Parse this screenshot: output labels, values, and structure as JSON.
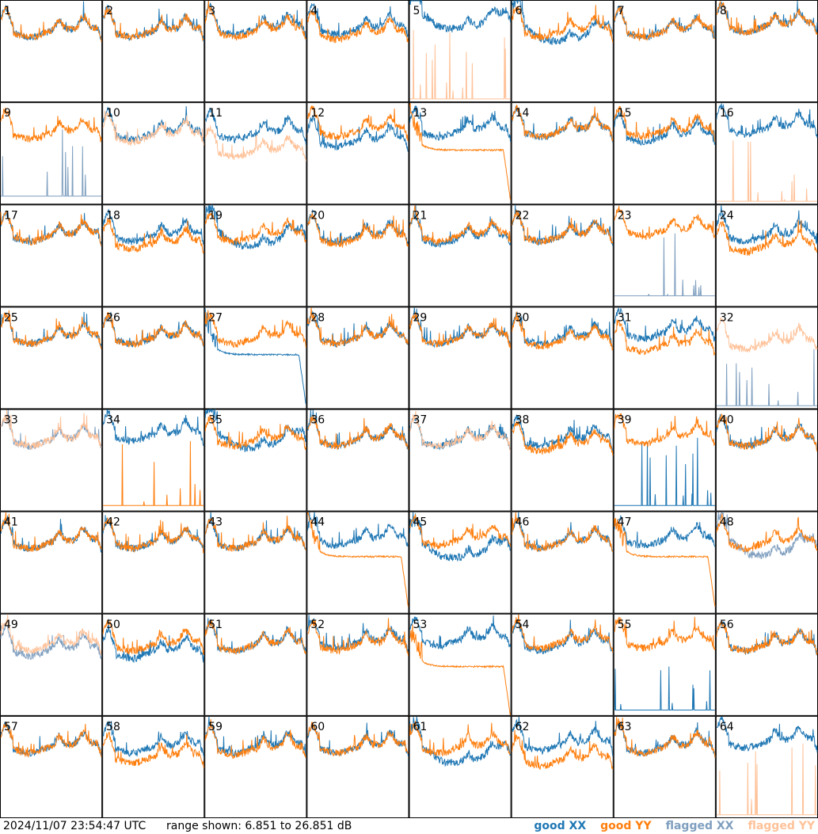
{
  "chart_data": {
    "type": "line",
    "timestamp": "2024/11/07 23:54:47 UTC",
    "range_text": "range shown: 6.851 to 26.851 dB",
    "range_db": [
      6.851,
      26.851
    ],
    "grid": "8x8",
    "legend": [
      {
        "label": "good XX",
        "color": "#1f77b4"
      },
      {
        "label": "good YY",
        "color": "#ff7f0e"
      },
      {
        "label": "flagged XX",
        "color": "#7f9fbf"
      },
      {
        "label": "flagged YY",
        "color": "#ffc299"
      }
    ],
    "colors": {
      "good_xx": "#1f77b4",
      "good_yy": "#ff7f0e",
      "flagged_xx": "#7f9fbf",
      "flagged_yy": "#ffc299"
    },
    "panels": [
      {
        "id": "1",
        "xx": "good",
        "yy": "good",
        "xx_db": 21,
        "yy_db": 21,
        "xx_var": "normal",
        "yy_var": "normal"
      },
      {
        "id": "2",
        "xx": "good",
        "yy": "good",
        "xx_db": 21,
        "yy_db": 21,
        "xx_var": "normal",
        "yy_var": "normal"
      },
      {
        "id": "3",
        "xx": "good",
        "yy": "good",
        "xx_db": 21.5,
        "yy_db": 21,
        "xx_var": "normal",
        "yy_var": "normal"
      },
      {
        "id": "4",
        "xx": "good",
        "yy": "good",
        "xx_db": 21.5,
        "yy_db": 20.5,
        "xx_var": "normal",
        "yy_var": "normal"
      },
      {
        "id": "5",
        "xx": "good",
        "yy": "flagged",
        "xx_db": 21.5,
        "yy_db": 7.5,
        "xx_var": "sag",
        "yy_var": "spikes"
      },
      {
        "id": "6",
        "xx": "good",
        "yy": "good",
        "xx_db": 19,
        "yy_db": 21,
        "xx_var": "sag",
        "yy_var": "normal"
      },
      {
        "id": "7",
        "xx": "good",
        "yy": "good",
        "xx_db": 21,
        "yy_db": 21,
        "xx_var": "normal",
        "yy_var": "normal"
      },
      {
        "id": "8",
        "xx": "good",
        "yy": "good",
        "xx_db": 22,
        "yy_db": 22,
        "xx_var": "normal",
        "yy_var": "normal"
      },
      {
        "id": "9",
        "xx": "flagged",
        "yy": "good",
        "xx_db": 8.5,
        "yy_db": 21,
        "xx_var": "spikes",
        "yy_var": "normal"
      },
      {
        "id": "10",
        "xx": "good",
        "yy": "flagged",
        "xx_db": 21,
        "yy_db": 20.5,
        "xx_var": "normal",
        "yy_var": "normal"
      },
      {
        "id": "11",
        "xx": "good",
        "yy": "flagged",
        "xx_db": 21,
        "yy_db": 17.5,
        "xx_var": "normal",
        "yy_var": "normal"
      },
      {
        "id": "12",
        "xx": "good",
        "yy": "good",
        "xx_db": 19.5,
        "yy_db": 21.5,
        "xx_var": "normal",
        "yy_var": "normal"
      },
      {
        "id": "13",
        "xx": "good",
        "yy": "good",
        "xx_db": 21.5,
        "yy_db": 17.5,
        "xx_var": "normal",
        "yy_var": "decay"
      },
      {
        "id": "14",
        "xx": "good",
        "yy": "good",
        "xx_db": 21.5,
        "yy_db": 21.5,
        "xx_var": "normal",
        "yy_var": "normal"
      },
      {
        "id": "15",
        "xx": "good",
        "yy": "good",
        "xx_db": 20.5,
        "yy_db": 21.5,
        "xx_var": "normal",
        "yy_var": "normal"
      },
      {
        "id": "16",
        "xx": "good",
        "yy": "flagged",
        "xx_db": 22,
        "yy_db": 7.5,
        "xx_var": "normal",
        "yy_var": "spikes"
      },
      {
        "id": "17",
        "xx": "good",
        "yy": "good",
        "xx_db": 21,
        "yy_db": 21,
        "xx_var": "normal",
        "yy_var": "normal"
      },
      {
        "id": "18",
        "xx": "good",
        "yy": "good",
        "xx_db": 21,
        "yy_db": 19.5,
        "xx_var": "normal",
        "yy_var": "normal"
      },
      {
        "id": "19",
        "xx": "good",
        "yy": "good",
        "xx_db": 19,
        "yy_db": 21,
        "xx_var": "sag",
        "yy_var": "normal"
      },
      {
        "id": "20",
        "xx": "good",
        "yy": "good",
        "xx_db": 21,
        "yy_db": 20.5,
        "xx_var": "normal",
        "yy_var": "normal"
      },
      {
        "id": "21",
        "xx": "good",
        "yy": "good",
        "xx_db": 20.5,
        "yy_db": 21,
        "xx_var": "normal",
        "yy_var": "normal"
      },
      {
        "id": "22",
        "xx": "good",
        "yy": "good",
        "xx_db": 21,
        "yy_db": 21,
        "xx_var": "normal",
        "yy_var": "normal"
      },
      {
        "id": "23",
        "xx": "flagged",
        "yy": "good",
        "xx_db": 9,
        "yy_db": 22,
        "xx_var": "spikes",
        "yy_var": "normal"
      },
      {
        "id": "24",
        "xx": "good",
        "yy": "good",
        "xx_db": 21,
        "yy_db": 19,
        "xx_var": "normal",
        "yy_var": "normal"
      },
      {
        "id": "25",
        "xx": "good",
        "yy": "good",
        "xx_db": 21,
        "yy_db": 21,
        "xx_var": "normal",
        "yy_var": "normal"
      },
      {
        "id": "26",
        "xx": "good",
        "yy": "good",
        "xx_db": 21,
        "yy_db": 21,
        "xx_var": "normal",
        "yy_var": "normal"
      },
      {
        "id": "27",
        "xx": "good",
        "yy": "good",
        "xx_db": 17.5,
        "yy_db": 21,
        "xx_var": "decay",
        "yy_var": "normal"
      },
      {
        "id": "28",
        "xx": "good",
        "yy": "good",
        "xx_db": 21,
        "yy_db": 21,
        "xx_var": "normal",
        "yy_var": "normal"
      },
      {
        "id": "29",
        "xx": "good",
        "yy": "good",
        "xx_db": 21,
        "yy_db": 21,
        "xx_var": "normal",
        "yy_var": "normal"
      },
      {
        "id": "30",
        "xx": "good",
        "yy": "good",
        "xx_db": 21,
        "yy_db": 20.5,
        "xx_var": "normal",
        "yy_var": "normal"
      },
      {
        "id": "31",
        "xx": "good",
        "yy": "good",
        "xx_db": 22,
        "yy_db": 19.5,
        "xx_var": "normal",
        "yy_var": "normal"
      },
      {
        "id": "32",
        "xx": "flagged",
        "yy": "flagged",
        "xx_db": 7.5,
        "yy_db": 20,
        "xx_var": "spikes",
        "yy_var": "normal"
      },
      {
        "id": "33",
        "xx": "flagged",
        "yy": "flagged",
        "xx_db": 21,
        "yy_db": 21,
        "xx_var": "normal",
        "yy_var": "normal"
      },
      {
        "id": "34",
        "xx": "good",
        "yy": "good",
        "xx_db": 22,
        "yy_db": 8,
        "xx_var": "normal",
        "yy_var": "spikes"
      },
      {
        "id": "35",
        "xx": "good",
        "yy": "good",
        "xx_db": 19.5,
        "yy_db": 21,
        "xx_var": "sag",
        "yy_var": "normal"
      },
      {
        "id": "36",
        "xx": "good",
        "yy": "good",
        "xx_db": 21,
        "yy_db": 21,
        "xx_var": "normal",
        "yy_var": "normal"
      },
      {
        "id": "37",
        "xx": "good",
        "yy": "flagged",
        "xx_db": 21,
        "yy_db": 21,
        "xx_var": "normal",
        "yy_var": "normal"
      },
      {
        "id": "38",
        "xx": "good",
        "yy": "good",
        "xx_db": 21,
        "yy_db": 20,
        "xx_var": "normal",
        "yy_var": "normal"
      },
      {
        "id": "39",
        "xx": "good",
        "yy": "good",
        "xx_db": 8,
        "yy_db": 21.5,
        "xx_var": "spikes",
        "yy_var": "normal"
      },
      {
        "id": "40",
        "xx": "good",
        "yy": "good",
        "xx_db": 21,
        "yy_db": 21,
        "xx_var": "normal",
        "yy_var": "normal"
      },
      {
        "id": "41",
        "xx": "good",
        "yy": "good",
        "xx_db": 21,
        "yy_db": 21,
        "xx_var": "normal",
        "yy_var": "normal"
      },
      {
        "id": "42",
        "xx": "good",
        "yy": "good",
        "xx_db": 21,
        "yy_db": 21,
        "xx_var": "normal",
        "yy_var": "normal"
      },
      {
        "id": "43",
        "xx": "good",
        "yy": "good",
        "xx_db": 21,
        "yy_db": 21,
        "xx_var": "normal",
        "yy_var": "normal"
      },
      {
        "id": "44",
        "xx": "good",
        "yy": "good",
        "xx_db": 21.5,
        "yy_db": 18,
        "xx_var": "normal",
        "yy_var": "decay"
      },
      {
        "id": "45",
        "xx": "good",
        "yy": "good",
        "xx_db": 18,
        "yy_db": 21.5,
        "xx_var": "sag",
        "yy_var": "normal"
      },
      {
        "id": "46",
        "xx": "good",
        "yy": "good",
        "xx_db": 21,
        "yy_db": 21,
        "xx_var": "normal",
        "yy_var": "normal"
      },
      {
        "id": "47",
        "xx": "good",
        "yy": "good",
        "xx_db": 21.5,
        "yy_db": 18,
        "xx_var": "normal",
        "yy_var": "decay"
      },
      {
        "id": "48",
        "xx": "flagged",
        "yy": "good",
        "xx_db": 18.5,
        "yy_db": 21,
        "xx_var": "sag",
        "yy_var": "normal"
      },
      {
        "id": "49",
        "xx": "flagged",
        "yy": "flagged",
        "xx_db": 20,
        "yy_db": 21,
        "xx_var": "normal",
        "yy_var": "normal"
      },
      {
        "id": "50",
        "xx": "good",
        "yy": "good",
        "xx_db": 19.5,
        "yy_db": 21,
        "xx_var": "normal",
        "yy_var": "normal"
      },
      {
        "id": "51",
        "xx": "good",
        "yy": "good",
        "xx_db": 21,
        "yy_db": 21,
        "xx_var": "normal",
        "yy_var": "normal"
      },
      {
        "id": "52",
        "xx": "good",
        "yy": "good",
        "xx_db": 21.5,
        "yy_db": 21,
        "xx_var": "normal",
        "yy_var": "normal"
      },
      {
        "id": "53",
        "xx": "good",
        "yy": "good",
        "xx_db": 22,
        "yy_db": 16.5,
        "xx_var": "normal",
        "yy_var": "decay"
      },
      {
        "id": "54",
        "xx": "good",
        "yy": "good",
        "xx_db": 21,
        "yy_db": 21.5,
        "xx_var": "normal",
        "yy_var": "normal"
      },
      {
        "id": "55",
        "xx": "good",
        "yy": "good",
        "xx_db": 8,
        "yy_db": 21.5,
        "xx_var": "spikes",
        "yy_var": "normal"
      },
      {
        "id": "56",
        "xx": "good",
        "yy": "good",
        "xx_db": 21,
        "yy_db": 21,
        "xx_var": "normal",
        "yy_var": "normal"
      },
      {
        "id": "57",
        "xx": "good",
        "yy": "good",
        "xx_db": 21,
        "yy_db": 21,
        "xx_var": "normal",
        "yy_var": "normal"
      },
      {
        "id": "58",
        "xx": "good",
        "yy": "good",
        "xx_db": 21,
        "yy_db": 19,
        "xx_var": "normal",
        "yy_var": "normal"
      },
      {
        "id": "59",
        "xx": "good",
        "yy": "good",
        "xx_db": 21,
        "yy_db": 20.5,
        "xx_var": "normal",
        "yy_var": "normal"
      },
      {
        "id": "60",
        "xx": "good",
        "yy": "good",
        "xx_db": 21,
        "yy_db": 21,
        "xx_var": "normal",
        "yy_var": "normal"
      },
      {
        "id": "61",
        "xx": "good",
        "yy": "good",
        "xx_db": 18,
        "yy_db": 21,
        "xx_var": "sag",
        "yy_var": "normal"
      },
      {
        "id": "62",
        "xx": "good",
        "yy": "good",
        "xx_db": 21.5,
        "yy_db": 18.5,
        "xx_var": "normal",
        "yy_var": "normal"
      },
      {
        "id": "63",
        "xx": "good",
        "yy": "good",
        "xx_db": 21,
        "yy_db": 21,
        "xx_var": "normal",
        "yy_var": "normal"
      },
      {
        "id": "64",
        "xx": "good",
        "yy": "flagged",
        "xx_db": 22,
        "yy_db": 7.5,
        "xx_var": "normal",
        "yy_var": "spikes"
      }
    ]
  }
}
